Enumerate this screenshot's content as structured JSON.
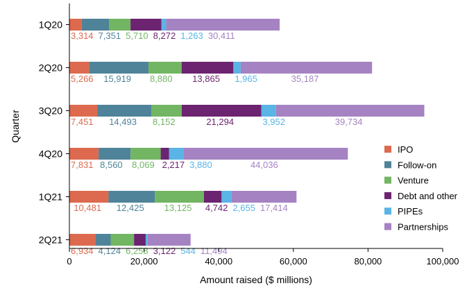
{
  "chart_data": {
    "type": "bar",
    "orientation": "horizontal",
    "stacked": true,
    "ylabel": "Quarter",
    "xlabel": "Amount raised ($ millions)",
    "xlim": [
      0,
      100000
    ],
    "x_ticks": [
      "0",
      "20,000",
      "40,000",
      "60,000",
      "80,000",
      "100,000"
    ],
    "x_tick_values": [
      0,
      20000,
      40000,
      60000,
      80000,
      100000
    ],
    "categories": [
      "1Q20",
      "2Q20",
      "3Q20",
      "4Q20",
      "1Q21",
      "2Q21"
    ],
    "grid": false,
    "legend_position": "right",
    "series": [
      {
        "name": "IPO",
        "color": "#dd6a4e",
        "values": [
          3314,
          5266,
          7451,
          7831,
          10481,
          6934
        ],
        "labels": [
          "3,314",
          "5,266",
          "7,451",
          "7,831",
          "10,481",
          "6,934"
        ]
      },
      {
        "name": "Follow-on",
        "color": "#4f8399",
        "values": [
          7351,
          15919,
          14493,
          8560,
          12425,
          4124
        ],
        "labels": [
          "7,351",
          "15,919",
          "14,493",
          "8,560",
          "12,425",
          "4,124"
        ]
      },
      {
        "name": "Venture",
        "color": "#72b562",
        "values": [
          5710,
          8880,
          8152,
          8069,
          13125,
          6258
        ],
        "labels": [
          "5,710",
          "8,880",
          "8,152",
          "8,069",
          "13,125",
          "6,258"
        ]
      },
      {
        "name": "Debt and other",
        "color": "#6c2370",
        "values": [
          8272,
          13865,
          21294,
          2217,
          4742,
          3122
        ],
        "labels": [
          "8,272",
          "13,865",
          "21,294",
          "2,217",
          "4,742",
          "3,122"
        ]
      },
      {
        "name": "PIPEs",
        "color": "#5ab4e5",
        "values": [
          1263,
          1965,
          3952,
          3880,
          2655,
          544
        ],
        "labels": [
          "1,263",
          "1,965",
          "3,952",
          "3,880",
          "2,655",
          "544"
        ]
      },
      {
        "name": "Partnerships",
        "color": "#a583c2",
        "values": [
          30411,
          35187,
          39734,
          44036,
          17414,
          11494
        ],
        "labels": [
          "30,411",
          "35,187",
          "39,734",
          "44,036",
          "17,414",
          "11,494"
        ]
      }
    ]
  }
}
